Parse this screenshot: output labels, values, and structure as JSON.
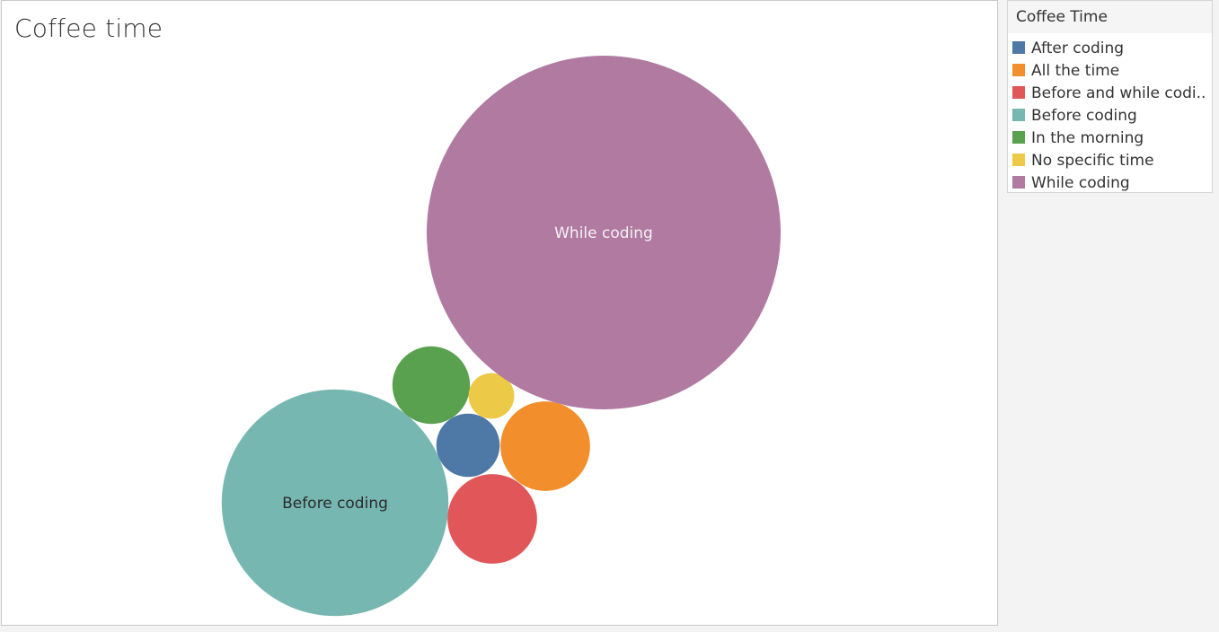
{
  "chart_data": {
    "type": "bubble",
    "title": "Coffee time",
    "legend_title": "Coffee Time",
    "legend_position": "top-right",
    "series": [
      {
        "name": "After coding",
        "value": 5,
        "color": "#4e79a7",
        "label": ""
      },
      {
        "name": "All the time",
        "value": 10,
        "color": "#f28e2b",
        "label": ""
      },
      {
        "name": "Before and while codi..",
        "value": 10,
        "color": "#e15759",
        "label": ""
      },
      {
        "name": "Before coding",
        "value": 64,
        "color": "#76b7b2",
        "label": "Before coding"
      },
      {
        "name": "In the morning",
        "value": 7.5,
        "color": "#59a14f",
        "label": ""
      },
      {
        "name": "No specific time",
        "value": 2.6,
        "color": "#edc948",
        "label": ""
      },
      {
        "name": "While coding",
        "value": 156,
        "color": "#b07aa1",
        "label": "While coding"
      }
    ]
  }
}
